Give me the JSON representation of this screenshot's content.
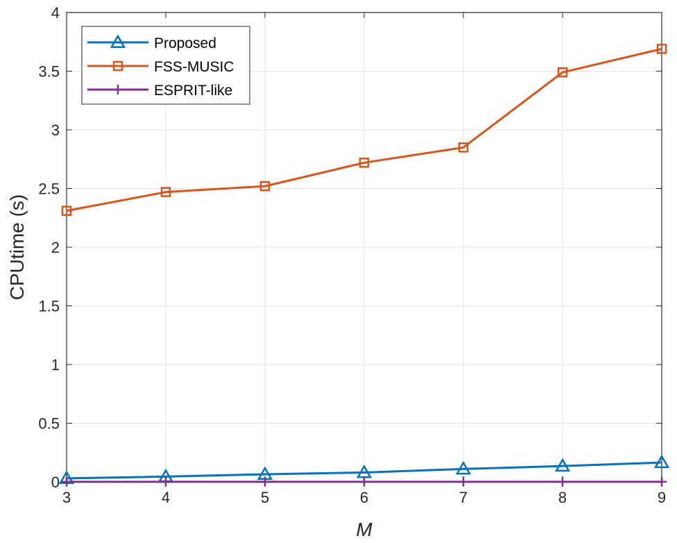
{
  "chart_data": {
    "type": "line",
    "title": "",
    "xlabel": "M",
    "ylabel": "CPUtime (s)",
    "x": [
      3,
      4,
      5,
      6,
      7,
      8,
      9
    ],
    "xlim": [
      3,
      9
    ],
    "ylim": [
      0,
      4
    ],
    "xticks": [
      "3",
      "4",
      "5",
      "6",
      "7",
      "8",
      "9"
    ],
    "yticks": [
      "0",
      "0.5",
      "1",
      "1.5",
      "2",
      "2.5",
      "3",
      "3.5",
      "4"
    ],
    "grid": true,
    "legend_position": "top-left",
    "series": [
      {
        "name": "Proposed",
        "color": "#0072BD",
        "marker": "triangle",
        "values": [
          0.03,
          0.045,
          0.065,
          0.08,
          0.11,
          0.135,
          0.165
        ]
      },
      {
        "name": "FSS-MUSIC",
        "color": "#D95319",
        "marker": "square",
        "values": [
          2.31,
          2.47,
          2.52,
          2.72,
          2.85,
          3.49,
          3.69
        ]
      },
      {
        "name": "ESPRIT-like",
        "color": "#7E2F8E",
        "marker": "plus",
        "values": [
          0.001,
          0.001,
          0.001,
          0.001,
          0.001,
          0.001,
          0.001
        ]
      }
    ]
  }
}
